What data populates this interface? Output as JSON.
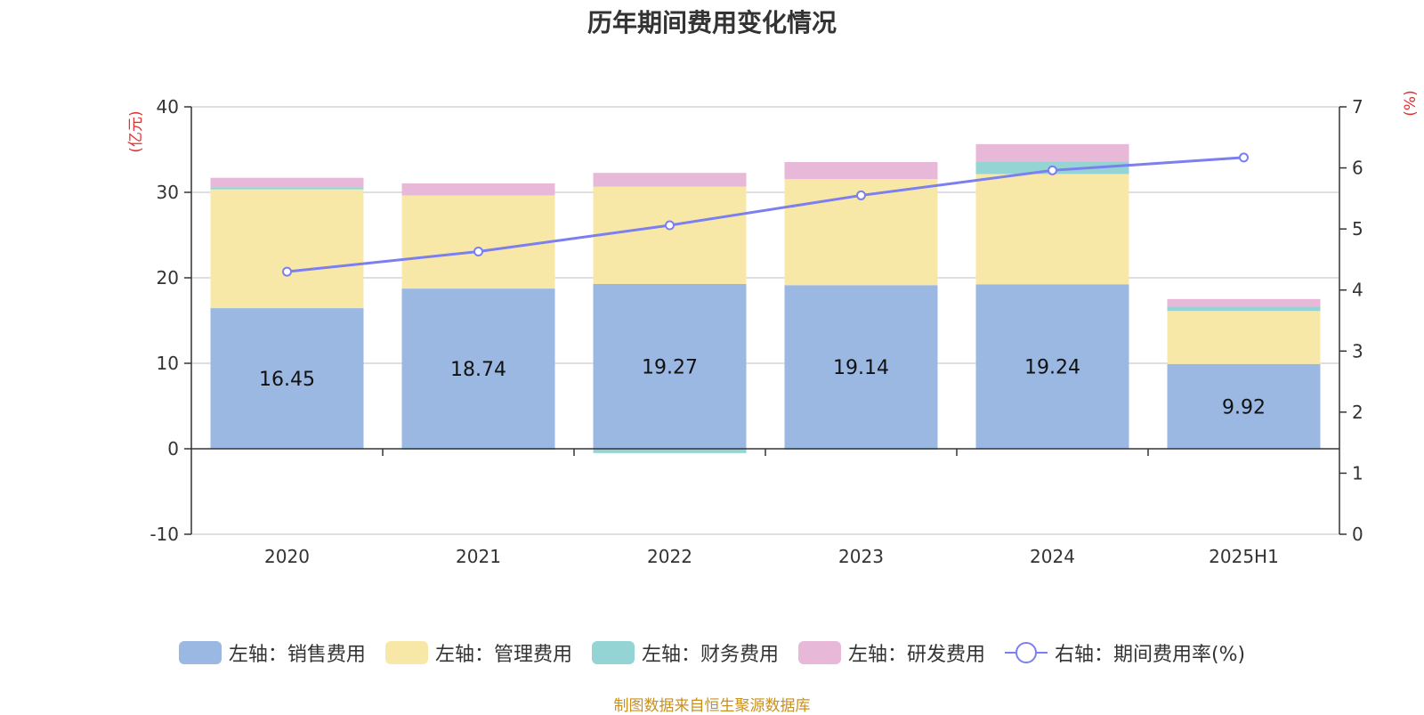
{
  "chart_data": {
    "type": "bar",
    "title": "历年期间费用变化情况",
    "left_axis_unit": "(亿元)",
    "right_axis_unit": "(%)",
    "categories": [
      "2020",
      "2021",
      "2022",
      "2023",
      "2024",
      "2025H1"
    ],
    "left_ylim": [
      -10,
      40
    ],
    "left_ticks": [
      "-10",
      "0",
      "10",
      "20",
      "30",
      "40"
    ],
    "right_ylim": [
      0,
      7
    ],
    "right_ticks": [
      "0",
      "1",
      "2",
      "3",
      "4",
      "5",
      "6",
      "7"
    ],
    "grid": true,
    "legend_position": "bottom",
    "series": [
      {
        "name": "左轴：销售费用",
        "kind": "bar",
        "axis": "left",
        "color": "#9bb8e2",
        "values": [
          16.45,
          18.74,
          19.27,
          19.14,
          19.24,
          9.92
        ]
      },
      {
        "name": "左轴：管理费用",
        "kind": "bar",
        "axis": "left",
        "color": "#f8e8a8",
        "values": [
          13.9,
          10.9,
          11.4,
          12.4,
          12.9,
          6.2
        ]
      },
      {
        "name": "左轴：财务费用",
        "kind": "bar",
        "axis": "left",
        "color": "#94d4d4",
        "values": [
          0.25,
          -0.1,
          -0.5,
          -0.1,
          1.4,
          0.5
        ]
      },
      {
        "name": "左轴：研发费用",
        "kind": "bar",
        "axis": "left",
        "color": "#e8b8d8",
        "values": [
          1.1,
          1.4,
          1.6,
          2.0,
          2.1,
          0.9
        ]
      },
      {
        "name": "右轴：期间费用率(%)",
        "kind": "line",
        "axis": "right",
        "color": "#7b7ff0",
        "values": [
          4.3,
          4.63,
          5.06,
          5.55,
          5.96,
          6.17
        ]
      }
    ],
    "data_labels": [
      "16.45",
      "18.74",
      "19.27",
      "19.14",
      "19.24",
      "9.92"
    ]
  },
  "source": "制图数据来自恒生聚源数据库"
}
